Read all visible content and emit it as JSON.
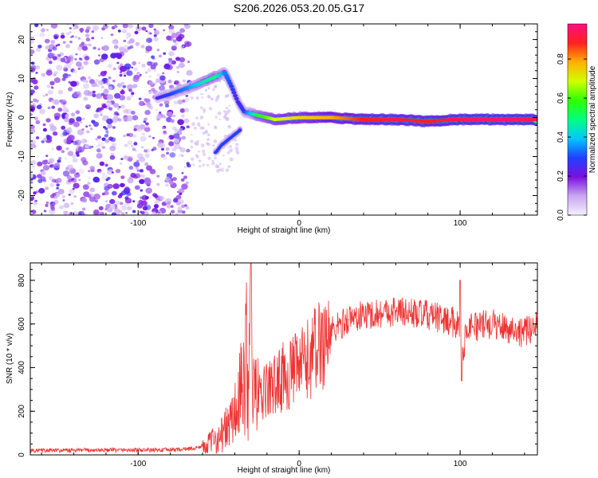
{
  "chart_data": [
    {
      "type": "heatmap",
      "title": "S206.2026.053.20.05.G17",
      "xlabel": "Height of straight line (km)",
      "ylabel": "Frequency (Hz)",
      "xlim": [
        -167,
        148
      ],
      "ylim": [
        -25,
        24
      ],
      "xticks": [
        -100,
        0,
        100
      ],
      "yticks": [
        -20,
        -10,
        0,
        10,
        20
      ],
      "colorbar": {
        "label": "Normalized spectral amplitude",
        "range": [
          0,
          0.98
        ],
        "ticks": [
          0.0,
          0.2,
          0.4,
          0.6,
          0.8
        ]
      },
      "ridge": [
        {
          "x": -88,
          "y": 5,
          "v": 0.25
        },
        {
          "x": -80,
          "y": 6,
          "v": 0.3
        },
        {
          "x": -70,
          "y": 7.5,
          "v": 0.35
        },
        {
          "x": -60,
          "y": 9,
          "v": 0.45
        },
        {
          "x": -52,
          "y": 10.5,
          "v": 0.5
        },
        {
          "x": -46,
          "y": 11.5,
          "v": 0.35
        },
        {
          "x": -42,
          "y": 8,
          "v": 0.3
        },
        {
          "x": -38,
          "y": 4,
          "v": 0.25
        },
        {
          "x": -34,
          "y": 1.5,
          "v": 0.3
        },
        {
          "x": -30,
          "y": 1,
          "v": 0.4
        },
        {
          "x": -25,
          "y": 0.5,
          "v": 0.55
        },
        {
          "x": -15,
          "y": -0.5,
          "v": 0.7
        },
        {
          "x": 0,
          "y": 0,
          "v": 0.75
        },
        {
          "x": 20,
          "y": 0,
          "v": 0.8
        },
        {
          "x": 40,
          "y": -0.5,
          "v": 0.9
        },
        {
          "x": 60,
          "y": -0.5,
          "v": 0.95
        },
        {
          "x": 80,
          "y": -1,
          "v": 0.9
        },
        {
          "x": 95,
          "y": -0.5,
          "v": 0.95
        },
        {
          "x": 110,
          "y": -0.5,
          "v": 0.98
        },
        {
          "x": 130,
          "y": -0.5,
          "v": 0.98
        },
        {
          "x": 148,
          "y": -0.5,
          "v": 0.95
        }
      ],
      "lower_branch": [
        {
          "x": -52,
          "y": -9,
          "v": 0.3
        },
        {
          "x": -48,
          "y": -7,
          "v": 0.3
        },
        {
          "x": -42,
          "y": -5,
          "v": 0.3
        },
        {
          "x": -36,
          "y": -3,
          "v": 0.3
        }
      ],
      "noise_region": {
        "x": [
          -167,
          -68
        ],
        "y": [
          -25,
          24
        ],
        "v": 0.2
      }
    },
    {
      "type": "line",
      "xlabel": "Height of straight line (km)",
      "ylabel": "SNR (10 * v/v)",
      "xlim": [
        -167,
        148
      ],
      "ylim": [
        0,
        880
      ],
      "xticks": [
        -100,
        0,
        100
      ],
      "yticks": [
        0,
        200,
        400,
        600,
        800
      ],
      "color": "#ee3333",
      "series": [
        {
          "name": "SNR",
          "x": [
            -167,
            -150,
            -130,
            -110,
            -90,
            -75,
            -65,
            -58,
            -55,
            -50,
            -45,
            -40,
            -35,
            -32,
            -30,
            -28,
            -25,
            -22,
            -20,
            -15,
            -10,
            -5,
            0,
            5,
            10,
            15,
            20,
            25,
            30,
            40,
            50,
            60,
            70,
            80,
            90,
            95,
            100,
            101,
            105,
            110,
            120,
            130,
            140,
            148
          ],
          "values": [
            20,
            20,
            22,
            22,
            22,
            25,
            30,
            45,
            60,
            80,
            120,
            180,
            300,
            520,
            400,
            300,
            250,
            280,
            300,
            320,
            360,
            370,
            400,
            430,
            480,
            530,
            570,
            590,
            620,
            640,
            650,
            660,
            650,
            640,
            620,
            610,
            600,
            450,
            600,
            590,
            600,
            580,
            560,
            600
          ]
        }
      ],
      "spikes": [
        {
          "x": -30,
          "y": 880
        },
        {
          "x": 100,
          "y": 800
        },
        {
          "x": 101,
          "y": 340
        }
      ]
    }
  ]
}
